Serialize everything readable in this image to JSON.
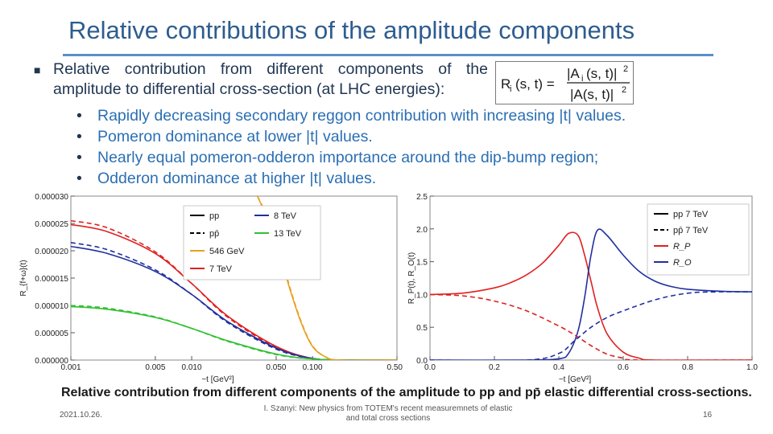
{
  "slide": {
    "title": "Relative contributions of the amplitude components",
    "main_bullet": "Relative contribution from different components of the amplitude to differential cross-section (at LHC energies):",
    "formula": {
      "lhs": "R",
      "lhs_sub": "i",
      "lhs_args": "(s, t) =",
      "num": "|A",
      "num_sub": "i",
      "num_args": "(s, t)|",
      "num_sup": "2",
      "den": "|A(s, t)|",
      "den_sup": "2"
    },
    "sub_bullets": [
      "Rapidly decreasing secondary reggon contribution with increasing |t| values.",
      "Pomeron dominance at lower |t| values.",
      "Nearly equal pomeron-odderon importance around the dip-bump region;",
      "Odderon dominance at higher |t| values."
    ],
    "caption": "Relative contribution from different components of the amplitude to pp and pp̄ elastic differential cross-sections.",
    "footer": {
      "date": "2021.10.26.",
      "text": "I. Szanyi: New physics from TOTEM's recent measuremnets of elastic and total cross sections",
      "page": "16"
    }
  },
  "chart_data": [
    {
      "type": "line",
      "xlabel": "−t [GeV²]",
      "ylabel": "R_{f+ω}(t)",
      "x_scale": "log",
      "xlim": [
        0.001,
        0.5
      ],
      "ylim": [
        0,
        3e-05
      ],
      "x_ticks": [
        "0.001",
        "0.005",
        "0.010",
        "0.050",
        "0.100",
        "0.500"
      ],
      "y_ticks": [
        "0.000000",
        "0.000005",
        "0.000010",
        "0.000015",
        "0.000020",
        "0.000025",
        "0.000030"
      ],
      "legend": {
        "placement": "top-center",
        "entries": [
          {
            "label": "pp",
            "color": "#000000",
            "dash": false
          },
          {
            "label": "pp̄",
            "color": "#000000",
            "dash": true
          },
          {
            "label": "546 GeV",
            "color": "#e8a020",
            "dash": false
          },
          {
            "label": "7 TeV",
            "color": "#e02020",
            "dash": false
          },
          {
            "label": "8 TeV",
            "color": "#2030a0",
            "dash": false
          },
          {
            "label": "13 TeV",
            "color": "#30c030",
            "dash": false
          }
        ]
      },
      "series": [
        {
          "name": "7 TeV",
          "process": "pp",
          "color": "#e02020",
          "dash": false,
          "x": [
            0.001,
            0.002,
            0.005,
            0.01,
            0.02,
            0.05,
            0.1,
            0.2,
            0.5
          ],
          "y": [
            2.48e-05,
            2.35e-05,
            1.95e-05,
            1.4e-05,
            8e-06,
            2.5e-06,
            3e-07,
            0.0,
            0.0
          ]
        },
        {
          "name": "7 TeV",
          "process": "pp̄",
          "color": "#e02020",
          "dash": true,
          "x": [
            0.001,
            0.002,
            0.005,
            0.01,
            0.02,
            0.05,
            0.1,
            0.2,
            0.5
          ],
          "y": [
            2.55e-05,
            2.42e-05,
            1.98e-05,
            1.4e-05,
            7.8e-06,
            2.3e-06,
            3e-07,
            0.0,
            0.0
          ]
        },
        {
          "name": "8 TeV",
          "process": "pp",
          "color": "#2030a0",
          "dash": false,
          "x": [
            0.001,
            0.002,
            0.005,
            0.01,
            0.02,
            0.05,
            0.1,
            0.2,
            0.5
          ],
          "y": [
            2.08e-05,
            1.95e-05,
            1.62e-05,
            1.2e-05,
            7e-06,
            2.2e-06,
            3e-07,
            0.0,
            0.0
          ]
        },
        {
          "name": "8 TeV",
          "process": "pp̄",
          "color": "#2030a0",
          "dash": true,
          "x": [
            0.001,
            0.002,
            0.005,
            0.01,
            0.02,
            0.05,
            0.1,
            0.2,
            0.5
          ],
          "y": [
            2.15e-05,
            2.02e-05,
            1.65e-05,
            1.2e-05,
            6.8e-06,
            2e-06,
            3e-07,
            0.0,
            0.0
          ]
        },
        {
          "name": "13 TeV",
          "process": "pp",
          "color": "#30c030",
          "dash": false,
          "x": [
            0.001,
            0.002,
            0.005,
            0.01,
            0.02,
            0.05,
            0.1,
            0.2,
            0.5
          ],
          "y": [
            9.8e-06,
            9.3e-06,
            7.8e-06,
            5.8e-06,
            3.5e-06,
            1.1e-06,
            2e-07,
            0.0,
            0.0
          ]
        },
        {
          "name": "13 TeV",
          "process": "pp̄",
          "color": "#30c030",
          "dash": true,
          "x": [
            0.001,
            0.002,
            0.005,
            0.01,
            0.02,
            0.05,
            0.1,
            0.2,
            0.5
          ],
          "y": [
            1e-05,
            9.5e-06,
            7.9e-06,
            5.8e-06,
            3.4e-06,
            1e-06,
            2e-07,
            0.0,
            0.0
          ]
        },
        {
          "name": "546 GeV",
          "process": "pp",
          "color": "#e8a020",
          "dash": false,
          "x": [
            0.035,
            0.045,
            0.055,
            0.065,
            0.08,
            0.1,
            0.13,
            0.17,
            0.5
          ],
          "y": [
            3e-05,
            2.45e-05,
            1.85e-05,
            1.3e-05,
            7e-06,
            2.5e-06,
            5e-07,
            0.0,
            0.0
          ]
        },
        {
          "name": "546 GeV",
          "process": "pp̄",
          "color": "#e8a020",
          "dash": true,
          "x": [
            0.035,
            0.045,
            0.055,
            0.065,
            0.08,
            0.1,
            0.13,
            0.17,
            0.5
          ],
          "y": [
            3e-05,
            2.5e-05,
            1.9e-05,
            1.33e-05,
            7.2e-06,
            2.6e-06,
            5e-07,
            0.0,
            0.0
          ]
        }
      ]
    },
    {
      "type": "line",
      "xlabel": "−t [GeV²]",
      "ylabel": "R_P(t), R_O(t)",
      "x_scale": "linear",
      "xlim": [
        0,
        1.0
      ],
      "ylim": [
        0,
        2.5
      ],
      "x_ticks": [
        "0.0",
        "0.2",
        "0.4",
        "0.6",
        "0.8",
        "1.0"
      ],
      "y_ticks": [
        "0.0",
        "0.5",
        "1.0",
        "1.5",
        "2.0",
        "2.5"
      ],
      "legend": {
        "placement": "top-right",
        "entries": [
          {
            "label": "pp 7 TeV",
            "color": "#000000",
            "dash": false
          },
          {
            "label": "pp̄ 7 TeV",
            "color": "#000000",
            "dash": true
          },
          {
            "label": "R_P",
            "color": "#e02020",
            "dash": false
          },
          {
            "label": "R_O",
            "color": "#2030a0",
            "dash": false
          }
        ]
      },
      "series": [
        {
          "name": "R_P",
          "process": "pp",
          "color": "#e02020",
          "dash": false,
          "x": [
            0,
            0.1,
            0.2,
            0.25,
            0.3,
            0.35,
            0.4,
            0.43,
            0.46,
            0.48,
            0.5,
            0.52,
            0.55,
            0.6,
            0.65,
            0.7,
            1.0
          ],
          "y": [
            1.0,
            1.02,
            1.1,
            1.18,
            1.3,
            1.48,
            1.75,
            1.93,
            1.9,
            1.6,
            1.2,
            0.8,
            0.4,
            0.12,
            0.03,
            0.0,
            0.0
          ]
        },
        {
          "name": "R_O",
          "process": "pp",
          "color": "#2030a0",
          "dash": false,
          "x": [
            0,
            0.3,
            0.4,
            0.43,
            0.46,
            0.48,
            0.5,
            0.52,
            0.55,
            0.6,
            0.65,
            0.7,
            0.75,
            0.8,
            0.9,
            1.0
          ],
          "y": [
            0.0,
            0.0,
            0.02,
            0.1,
            0.45,
            0.95,
            1.6,
            1.98,
            1.9,
            1.6,
            1.35,
            1.2,
            1.12,
            1.08,
            1.05,
            1.04
          ]
        },
        {
          "name": "R_P",
          "process": "pp̄",
          "color": "#e02020",
          "dash": true,
          "x": [
            0,
            0.1,
            0.2,
            0.3,
            0.4,
            0.45,
            0.5,
            0.55,
            0.6,
            0.65,
            1.0
          ],
          "y": [
            1.0,
            0.98,
            0.9,
            0.75,
            0.52,
            0.38,
            0.22,
            0.09,
            0.03,
            0.0,
            0.0
          ]
        },
        {
          "name": "R_O",
          "process": "pp̄",
          "color": "#2030a0",
          "dash": true,
          "x": [
            0,
            0.3,
            0.4,
            0.45,
            0.5,
            0.55,
            0.6,
            0.7,
            0.8,
            0.9,
            1.0
          ],
          "y": [
            0.0,
            0.0,
            0.1,
            0.3,
            0.5,
            0.65,
            0.75,
            0.92,
            1.02,
            1.04,
            1.04
          ]
        }
      ]
    }
  ]
}
